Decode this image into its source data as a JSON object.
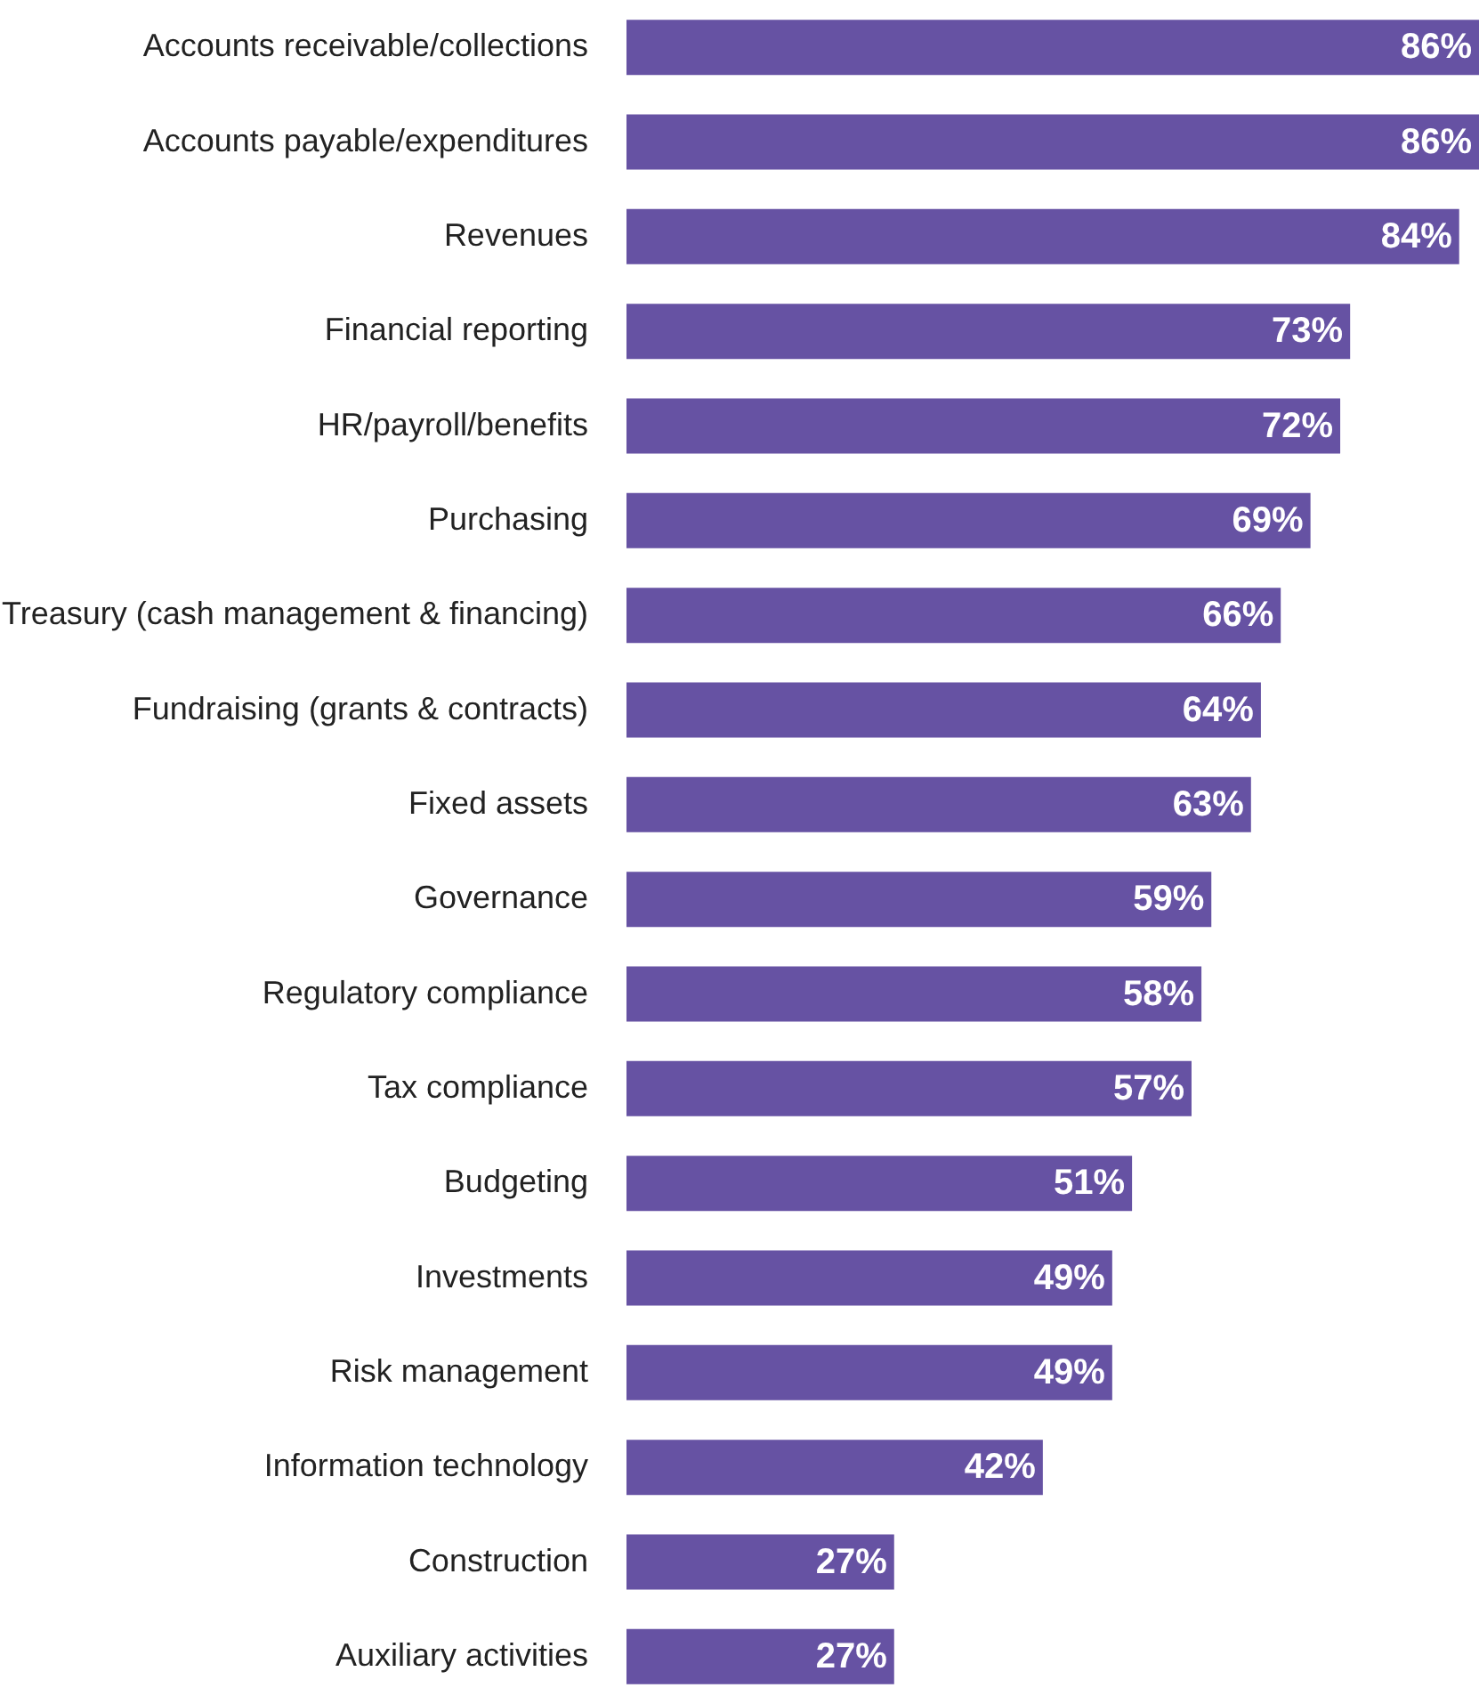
{
  "chart_data": {
    "type": "bar",
    "orientation": "horizontal",
    "categories": [
      "Accounts receivable/collections",
      "Accounts payable/expenditures",
      "Revenues",
      "Financial reporting",
      "HR/payroll/benefits",
      "Purchasing",
      "Treasury (cash management & financing)",
      "Fundraising (grants & contracts)",
      "Fixed assets",
      "Governance",
      "Regulatory compliance",
      "Tax compliance",
      "Budgeting",
      "Investments",
      "Risk management",
      "Information technology",
      "Construction",
      "Auxiliary activities"
    ],
    "values": [
      86,
      86,
      84,
      73,
      72,
      69,
      66,
      64,
      63,
      59,
      58,
      57,
      51,
      49,
      49,
      42,
      27,
      27
    ],
    "value_labels": [
      "86%",
      "86%",
      "84%",
      "73%",
      "72%",
      "69%",
      "66%",
      "64%",
      "63%",
      "59%",
      "58%",
      "57%",
      "51%",
      "49%",
      "49%",
      "42%",
      "27%",
      "27%"
    ],
    "color": "#6652a3",
    "grid": false,
    "tick_labels": "y"
  }
}
